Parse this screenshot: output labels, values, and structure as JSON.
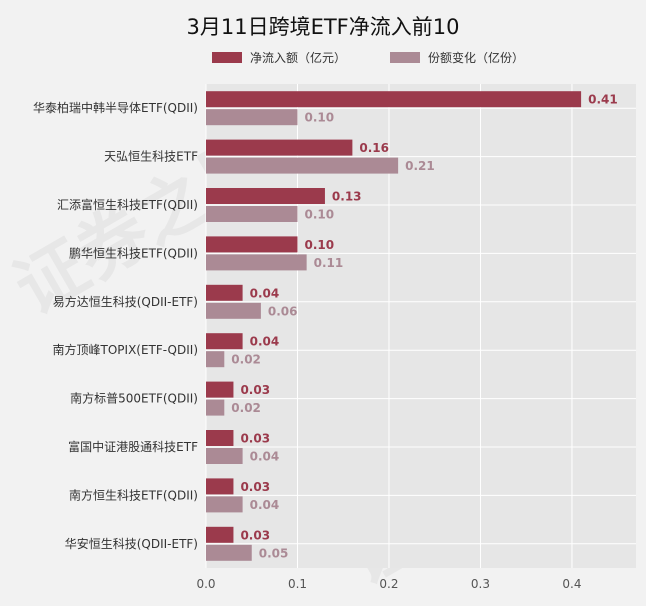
{
  "chart_data": {
    "type": "bar",
    "orientation": "horizontal",
    "title": "3月11日跨境ETF净流入前10",
    "categories": [
      "华泰柏瑞中韩半导体ETF(QDII)",
      "天弘恒生科技ETF",
      "汇添富恒生科技ETF(QDII)",
      "鹏华恒生科技ETF(QDII)",
      "易方达恒生科技(QDII-ETF)",
      "南方顶峰TOPIX(ETF-QDII)",
      "南方标普500ETF(QDII)",
      "富国中证港股通科技ETF",
      "南方恒生科技ETF(QDII)",
      "华安恒生科技(QDII-ETF)"
    ],
    "series": [
      {
        "name": "净流入额（亿元）",
        "color": "#9b3a4c",
        "values": [
          0.41,
          0.16,
          0.13,
          0.1,
          0.04,
          0.04,
          0.03,
          0.03,
          0.03,
          0.03
        ],
        "labels": [
          "0.41",
          "0.16",
          "0.13",
          "0.10",
          "0.04",
          "0.04",
          "0.03",
          "0.03",
          "0.03",
          "0.03"
        ]
      },
      {
        "name": "份额变化（亿份）",
        "color": "#ab8a95",
        "values": [
          0.1,
          0.21,
          0.1,
          0.11,
          0.06,
          0.02,
          0.02,
          0.04,
          0.04,
          0.05
        ],
        "labels": [
          "0.10",
          "0.21",
          "0.10",
          "0.11",
          "0.06",
          "0.02",
          "0.02",
          "0.04",
          "0.04",
          "0.05"
        ]
      }
    ],
    "xlim": [
      0,
      0.47
    ],
    "xticks": [
      0,
      0.1,
      0.2,
      0.3,
      0.4
    ],
    "xtick_labels": [
      "0.0",
      "0.1",
      "0.2",
      "0.3",
      "0.4"
    ],
    "grid": true,
    "legend": "top",
    "watermark": "证券之星"
  }
}
